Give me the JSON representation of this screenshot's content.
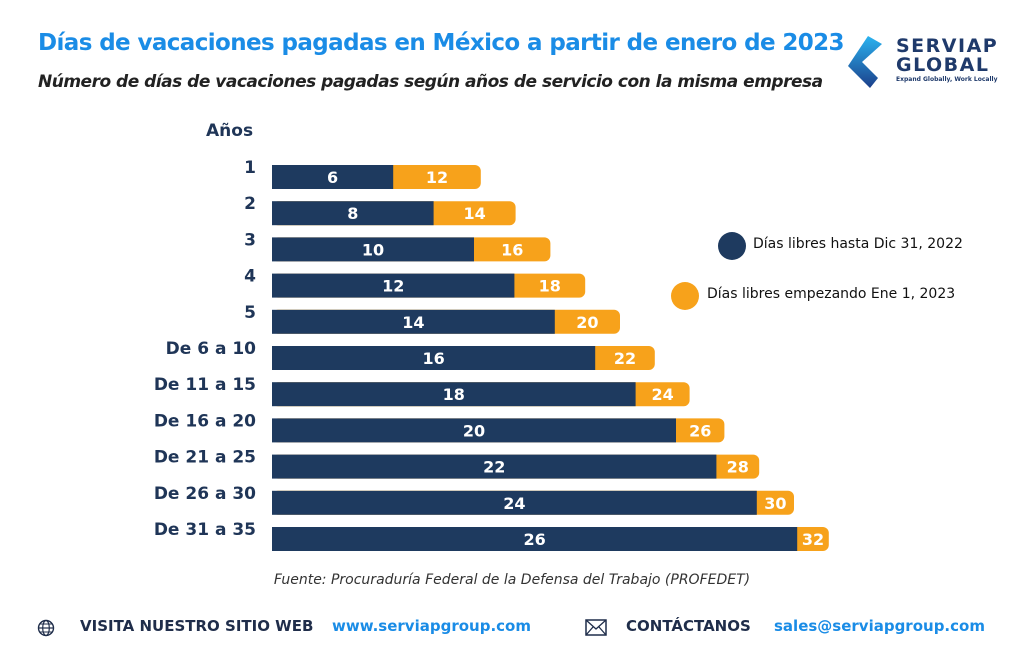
{
  "header": {
    "title": "Días de vacaciones pagadas en México a partir de enero de 2023",
    "subtitle": "Número de días de vacaciones pagadas según años de servicio con la misma empresa"
  },
  "logo": {
    "line1": "SERVIAP",
    "line2": "GLOBAL",
    "tagline": "Expand Globally, Work Locally"
  },
  "chart_data": {
    "type": "bar",
    "orientation": "horizontal",
    "ylabel": "Años",
    "categories": [
      "1",
      "2",
      "3",
      "4",
      "5",
      "De 6 a 10",
      "De 11 a 15",
      "De 16 a 20",
      "De 21 a 25",
      "De 26 a 30",
      "De 31 a 35"
    ],
    "series": [
      {
        "name": "Días libres hasta Dic 31, 2022",
        "color": "#1e3a5f",
        "values": [
          6,
          8,
          10,
          12,
          14,
          16,
          18,
          20,
          22,
          24,
          26
        ]
      },
      {
        "name": "Días libres empezando Ene 1, 2023",
        "color": "#f7a21b",
        "values": [
          12,
          14,
          16,
          18,
          20,
          22,
          24,
          26,
          28,
          30,
          32
        ]
      }
    ],
    "legend_position": "right",
    "grid": false
  },
  "source": "Fuente: Procuraduría Federal de la Defensa del Trabajo (PROFEDET)",
  "footer": {
    "web_label": "VISITA NUESTRO SITIO WEB",
    "web_url": "www.serviapgroup.com",
    "contact_label": "CONTÁCTANOS",
    "email": "sales@serviapgroup.com"
  }
}
